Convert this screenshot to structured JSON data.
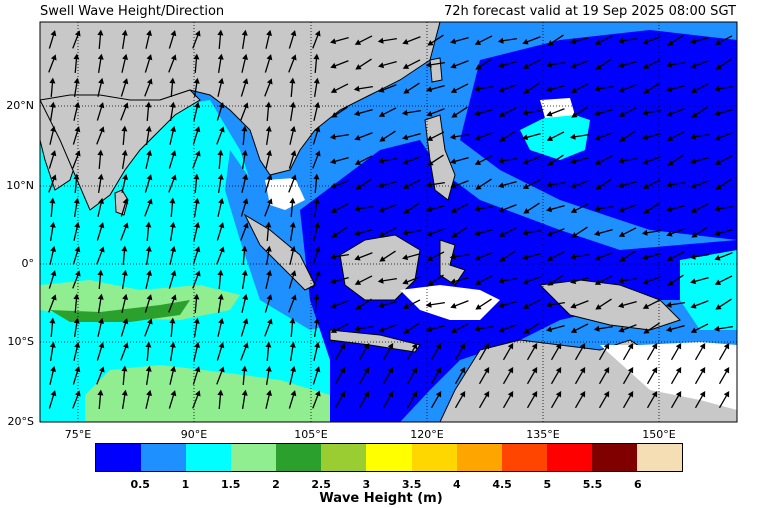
{
  "header": {
    "title": "Swell Wave Height/Direction",
    "valid": "72h forecast valid at 19 Sep 2025 08:00 SGT"
  },
  "map": {
    "lat_labels": [
      "20°N",
      "10°N",
      "0°",
      "10°S",
      "20°S"
    ],
    "lon_labels": [
      "75°E",
      "90°E",
      "105°E",
      "120°E",
      "135°E",
      "150°E"
    ],
    "lon_range": [
      70,
      160
    ],
    "lat_range": [
      -20,
      30
    ],
    "grid_lines": true
  },
  "colorbar": {
    "title": "Wave Height (m)",
    "ticks": [
      "0.5",
      "1",
      "1.5",
      "2",
      "2.5",
      "3",
      "3.5",
      "4",
      "4.5",
      "5",
      "5.5",
      "6"
    ],
    "colors": [
      "#0000ff",
      "#1e90ff",
      "#00ffff",
      "#90ee90",
      "#2ca02c",
      "#9acd32",
      "#ffff00",
      "#ffd700",
      "#ffa500",
      "#ff4500",
      "#ff0000",
      "#800000",
      "#f5deb3"
    ]
  },
  "colors": {
    "land": "#c8c8c8",
    "no_data": "#ffffff"
  }
}
